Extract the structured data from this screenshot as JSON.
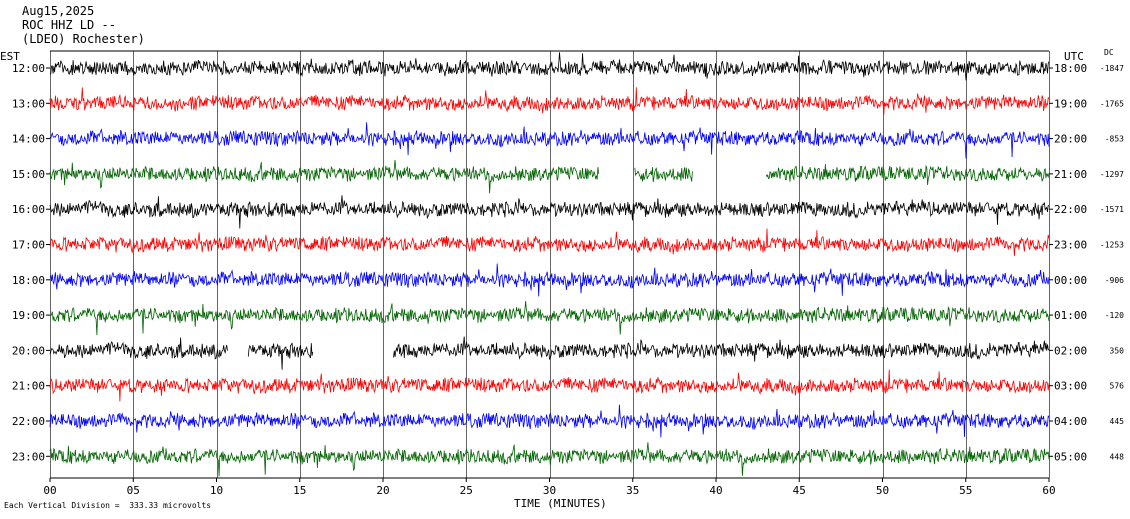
{
  "header": {
    "date": "Aug15,2025",
    "station": "ROC HHZ LD --",
    "network": "(LDEO) Rochester)"
  },
  "labels": {
    "left_tz": "EST",
    "right_tz": "UTC",
    "dc": "DC",
    "xlabel": "TIME (MINUTES)",
    "scale_note": "Each Vertical Division =  333.33 microvolts"
  },
  "colors": {
    "trace_cycle": [
      "#000000",
      "#ff0000",
      "#0000ff",
      "#006400"
    ],
    "grid": "#000000"
  },
  "chart_data": {
    "type": "line",
    "title": "Aug15,2025 ROC HHZ LD -- (LDEO) Rochester)",
    "xlabel": "TIME (MINUTES)",
    "ylabel": "",
    "xlim": [
      0,
      60
    ],
    "x_ticks": [
      "00",
      "05",
      "10",
      "15",
      "20",
      "25",
      "30",
      "35",
      "40",
      "45",
      "50",
      "55",
      "60"
    ],
    "grid_every_minutes": 5,
    "rows": [
      {
        "est": "12:00",
        "utc": "18:00",
        "dc": "-1847",
        "color": "#000000",
        "gaps": []
      },
      {
        "est": "13:00",
        "utc": "19:00",
        "dc": "-1765",
        "color": "#ff0000",
        "gaps": []
      },
      {
        "est": "14:00",
        "utc": "20:00",
        "dc": "-853",
        "color": "#0000ff",
        "gaps": []
      },
      {
        "est": "15:00",
        "utc": "21:00",
        "dc": "-1297",
        "color": "#006400",
        "gaps": [
          [
            33.0,
            35.1
          ],
          [
            38.6,
            43.0
          ]
        ]
      },
      {
        "est": "16:00",
        "utc": "22:00",
        "dc": "-1571",
        "color": "#000000",
        "gaps": []
      },
      {
        "est": "17:00",
        "utc": "23:00",
        "dc": "-1253",
        "color": "#ff0000",
        "gaps": []
      },
      {
        "est": "18:00",
        "utc": "00:00",
        "dc": "-906",
        "color": "#0000ff",
        "gaps": []
      },
      {
        "est": "19:00",
        "utc": "01:00",
        "dc": "-120",
        "color": "#006400",
        "gaps": []
      },
      {
        "est": "20:00",
        "utc": "02:00",
        "dc": "350",
        "color": "#000000",
        "gaps": [
          [
            10.7,
            11.9
          ],
          [
            15.8,
            20.6
          ]
        ]
      },
      {
        "est": "21:00",
        "utc": "03:00",
        "dc": "576",
        "color": "#ff0000",
        "gaps": []
      },
      {
        "est": "22:00",
        "utc": "04:00",
        "dc": "445",
        "color": "#0000ff",
        "gaps": []
      },
      {
        "est": "23:00",
        "utc": "05:00",
        "dc": "448",
        "color": "#006400",
        "gaps": []
      }
    ]
  }
}
